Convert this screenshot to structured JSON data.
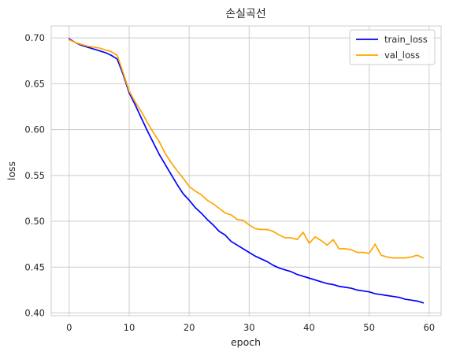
{
  "chart_data": {
    "type": "line",
    "title": "손실곡선",
    "xlabel": "epoch",
    "ylabel": "loss",
    "xlim": [
      -3,
      62
    ],
    "ylim": [
      0.397,
      0.713
    ],
    "xticks": [
      0,
      10,
      20,
      30,
      40,
      50,
      60
    ],
    "yticks": [
      0.4,
      0.45,
      0.5,
      0.55,
      0.6,
      0.65,
      0.7
    ],
    "grid": true,
    "legend_position": "top-right",
    "x": [
      0,
      1,
      2,
      3,
      4,
      5,
      6,
      7,
      8,
      9,
      10,
      11,
      12,
      13,
      14,
      15,
      16,
      17,
      18,
      19,
      20,
      21,
      22,
      23,
      24,
      25,
      26,
      27,
      28,
      29,
      30,
      31,
      32,
      33,
      34,
      35,
      36,
      37,
      38,
      39,
      40,
      41,
      42,
      43,
      44,
      45,
      46,
      47,
      48,
      49,
      50,
      51,
      52,
      53,
      54,
      55,
      56,
      57,
      58,
      59
    ],
    "series": [
      {
        "name": "train_loss",
        "color": "#0000ff",
        "values": [
          0.699,
          0.695,
          0.692,
          0.69,
          0.688,
          0.686,
          0.684,
          0.681,
          0.677,
          0.66,
          0.64,
          0.627,
          0.613,
          0.599,
          0.586,
          0.573,
          0.562,
          0.551,
          0.54,
          0.53,
          0.523,
          0.515,
          0.509,
          0.502,
          0.496,
          0.489,
          0.485,
          0.478,
          0.474,
          0.47,
          0.466,
          0.462,
          0.459,
          0.456,
          0.452,
          0.449,
          0.447,
          0.445,
          0.442,
          0.44,
          0.438,
          0.436,
          0.434,
          0.432,
          0.431,
          0.429,
          0.428,
          0.427,
          0.425,
          0.424,
          0.423,
          0.421,
          0.42,
          0.419,
          0.418,
          0.417,
          0.415,
          0.414,
          0.413,
          0.411
        ]
      },
      {
        "name": "val_loss",
        "color": "#ffa500",
        "values": [
          0.698,
          0.695,
          0.693,
          0.691,
          0.69,
          0.689,
          0.687,
          0.685,
          0.681,
          0.662,
          0.642,
          0.63,
          0.62,
          0.608,
          0.597,
          0.587,
          0.574,
          0.564,
          0.555,
          0.547,
          0.538,
          0.533,
          0.529,
          0.523,
          0.519,
          0.514,
          0.509,
          0.507,
          0.502,
          0.501,
          0.496,
          0.492,
          0.491,
          0.491,
          0.489,
          0.485,
          0.482,
          0.482,
          0.48,
          0.488,
          0.476,
          0.483,
          0.479,
          0.474,
          0.48,
          0.47,
          0.47,
          0.469,
          0.466,
          0.466,
          0.465,
          0.475,
          0.463,
          0.461,
          0.46,
          0.46,
          0.46,
          0.461,
          0.463,
          0.46
        ]
      }
    ]
  }
}
